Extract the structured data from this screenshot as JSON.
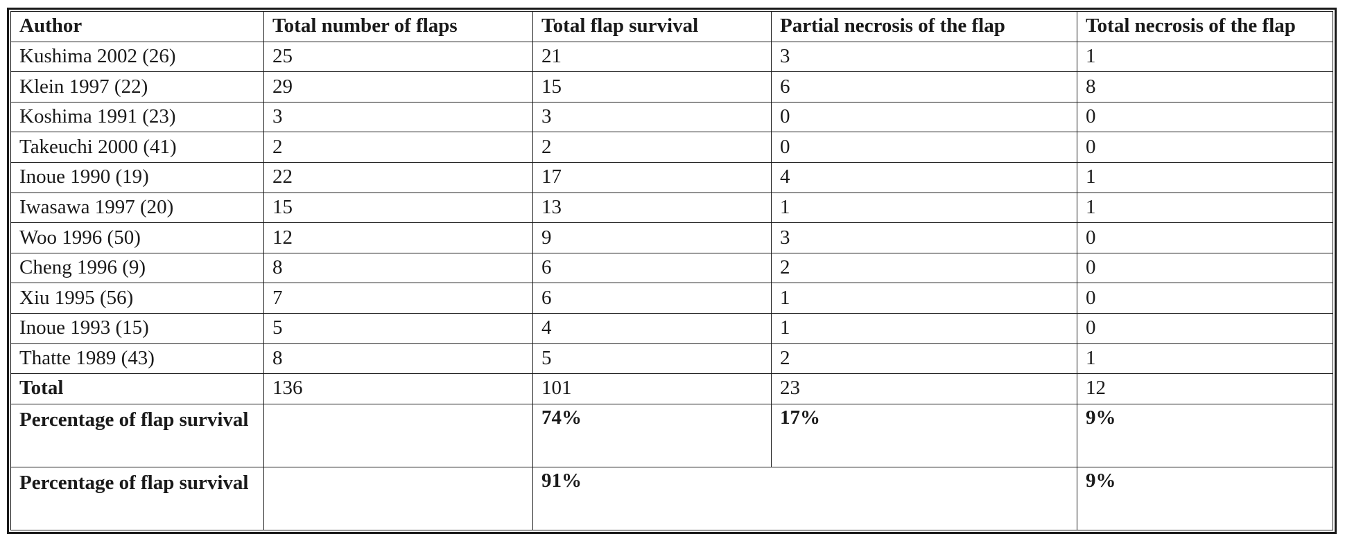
{
  "table": {
    "headers": [
      "Author",
      "Total number of flaps",
      "Total flap survival",
      "Partial necrosis of the flap",
      "Total necrosis of the flap"
    ],
    "rows": [
      [
        "Kushima 2002 (26)",
        "25",
        "21",
        "3",
        "1"
      ],
      [
        "Klein 1997 (22)",
        "29",
        "15",
        "6",
        "8"
      ],
      [
        "Koshima 1991 (23)",
        "3",
        "3",
        "0",
        "0"
      ],
      [
        "Takeuchi 2000 (41)",
        "2",
        "2",
        "0",
        "0"
      ],
      [
        "Inoue 1990 (19)",
        "22",
        "17",
        "4",
        "1"
      ],
      [
        "Iwasawa 1997 (20)",
        "15",
        "13",
        "1",
        "1"
      ],
      [
        "Woo 1996 (50)",
        "12",
        "9",
        "3",
        "0"
      ],
      [
        "Cheng 1996 (9)",
        "8",
        "6",
        "2",
        "0"
      ],
      [
        "Xiu 1995 (56)",
        "7",
        "6",
        "1",
        "0"
      ],
      [
        "Inoue 1993 (15)",
        "5",
        "4",
        "1",
        "0"
      ],
      [
        "Thatte 1989 (43)",
        "8",
        "5",
        "2",
        "1"
      ]
    ],
    "total": {
      "label": "Total",
      "total_flaps": "136",
      "survival": "101",
      "partial": "23",
      "necrosis": "12"
    },
    "percentage_row_1": {
      "label": "Percentage of flap survival",
      "total_flaps": "",
      "survival": "74%",
      "partial": "17%",
      "necrosis": "9%"
    },
    "percentage_row_2": {
      "label": "Percentage of flap survival",
      "total_flaps": "",
      "survival_partial_combined": "91%",
      "necrosis": "9%"
    }
  }
}
